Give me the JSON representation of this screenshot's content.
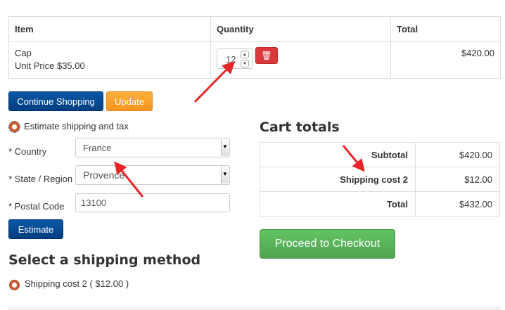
{
  "cart": {
    "headers": [
      "Item",
      "Quantity",
      "Total"
    ],
    "rows": [
      {
        "name": "Cap",
        "unit_price": "Unit Price $35.00",
        "quantity": "12",
        "total": "$420.00"
      }
    ]
  },
  "buttons": {
    "continue": "Continue Shopping",
    "update": "Update",
    "estimate": "Estimate",
    "checkout": "Proceed to Checkout"
  },
  "estimate": {
    "toggle_label": "Estimate shipping and tax",
    "country_label": "* Country",
    "country_value": "France",
    "state_label": "* State / Region",
    "state_value": "Provence",
    "postal_label": "* Postal Code",
    "postal_value": "13100"
  },
  "shipping": {
    "heading": "Select a shipping method",
    "option": "Shipping cost 2 ( $12.00 )"
  },
  "totals": {
    "heading": "Cart totals",
    "rows": [
      {
        "label": "Subtotal",
        "value": "$420.00"
      },
      {
        "label": "Shipping cost 2",
        "value": "$12.00"
      },
      {
        "label": "Total",
        "value": "$432.00"
      }
    ]
  },
  "colors": {
    "annotation_arrow": "#e8262a",
    "primary": "#004b97",
    "warning": "#f7941d",
    "success": "#5bb75b",
    "danger": "#d9393a"
  }
}
